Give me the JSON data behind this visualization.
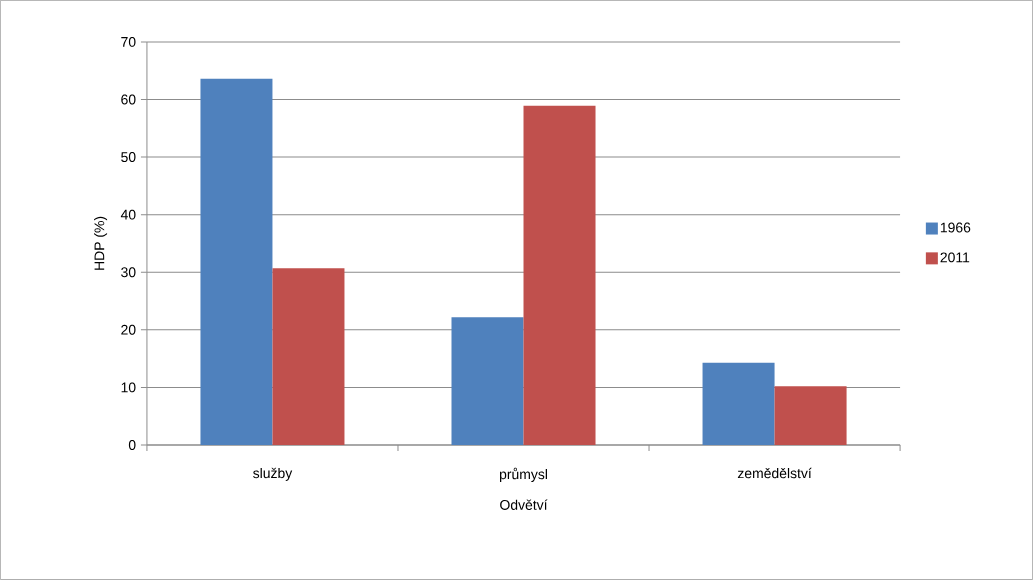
{
  "chart_data": {
    "type": "bar",
    "xlabel": "Odvětví",
    "ylabel": "HDP (%)",
    "categories": [
      "služby",
      "průmysl",
      "zemědělství"
    ],
    "series": [
      {
        "name": "1966",
        "color": "#4f81bd",
        "values": [
          63.6,
          22.2,
          14.3
        ]
      },
      {
        "name": "2011",
        "color": "#c0504d",
        "values": [
          30.7,
          58.9,
          10.2
        ]
      }
    ],
    "ylim": [
      0,
      70
    ],
    "yticks": [
      0,
      10,
      20,
      30,
      40,
      50,
      60,
      70
    ],
    "grid": "y",
    "legend": "right"
  }
}
